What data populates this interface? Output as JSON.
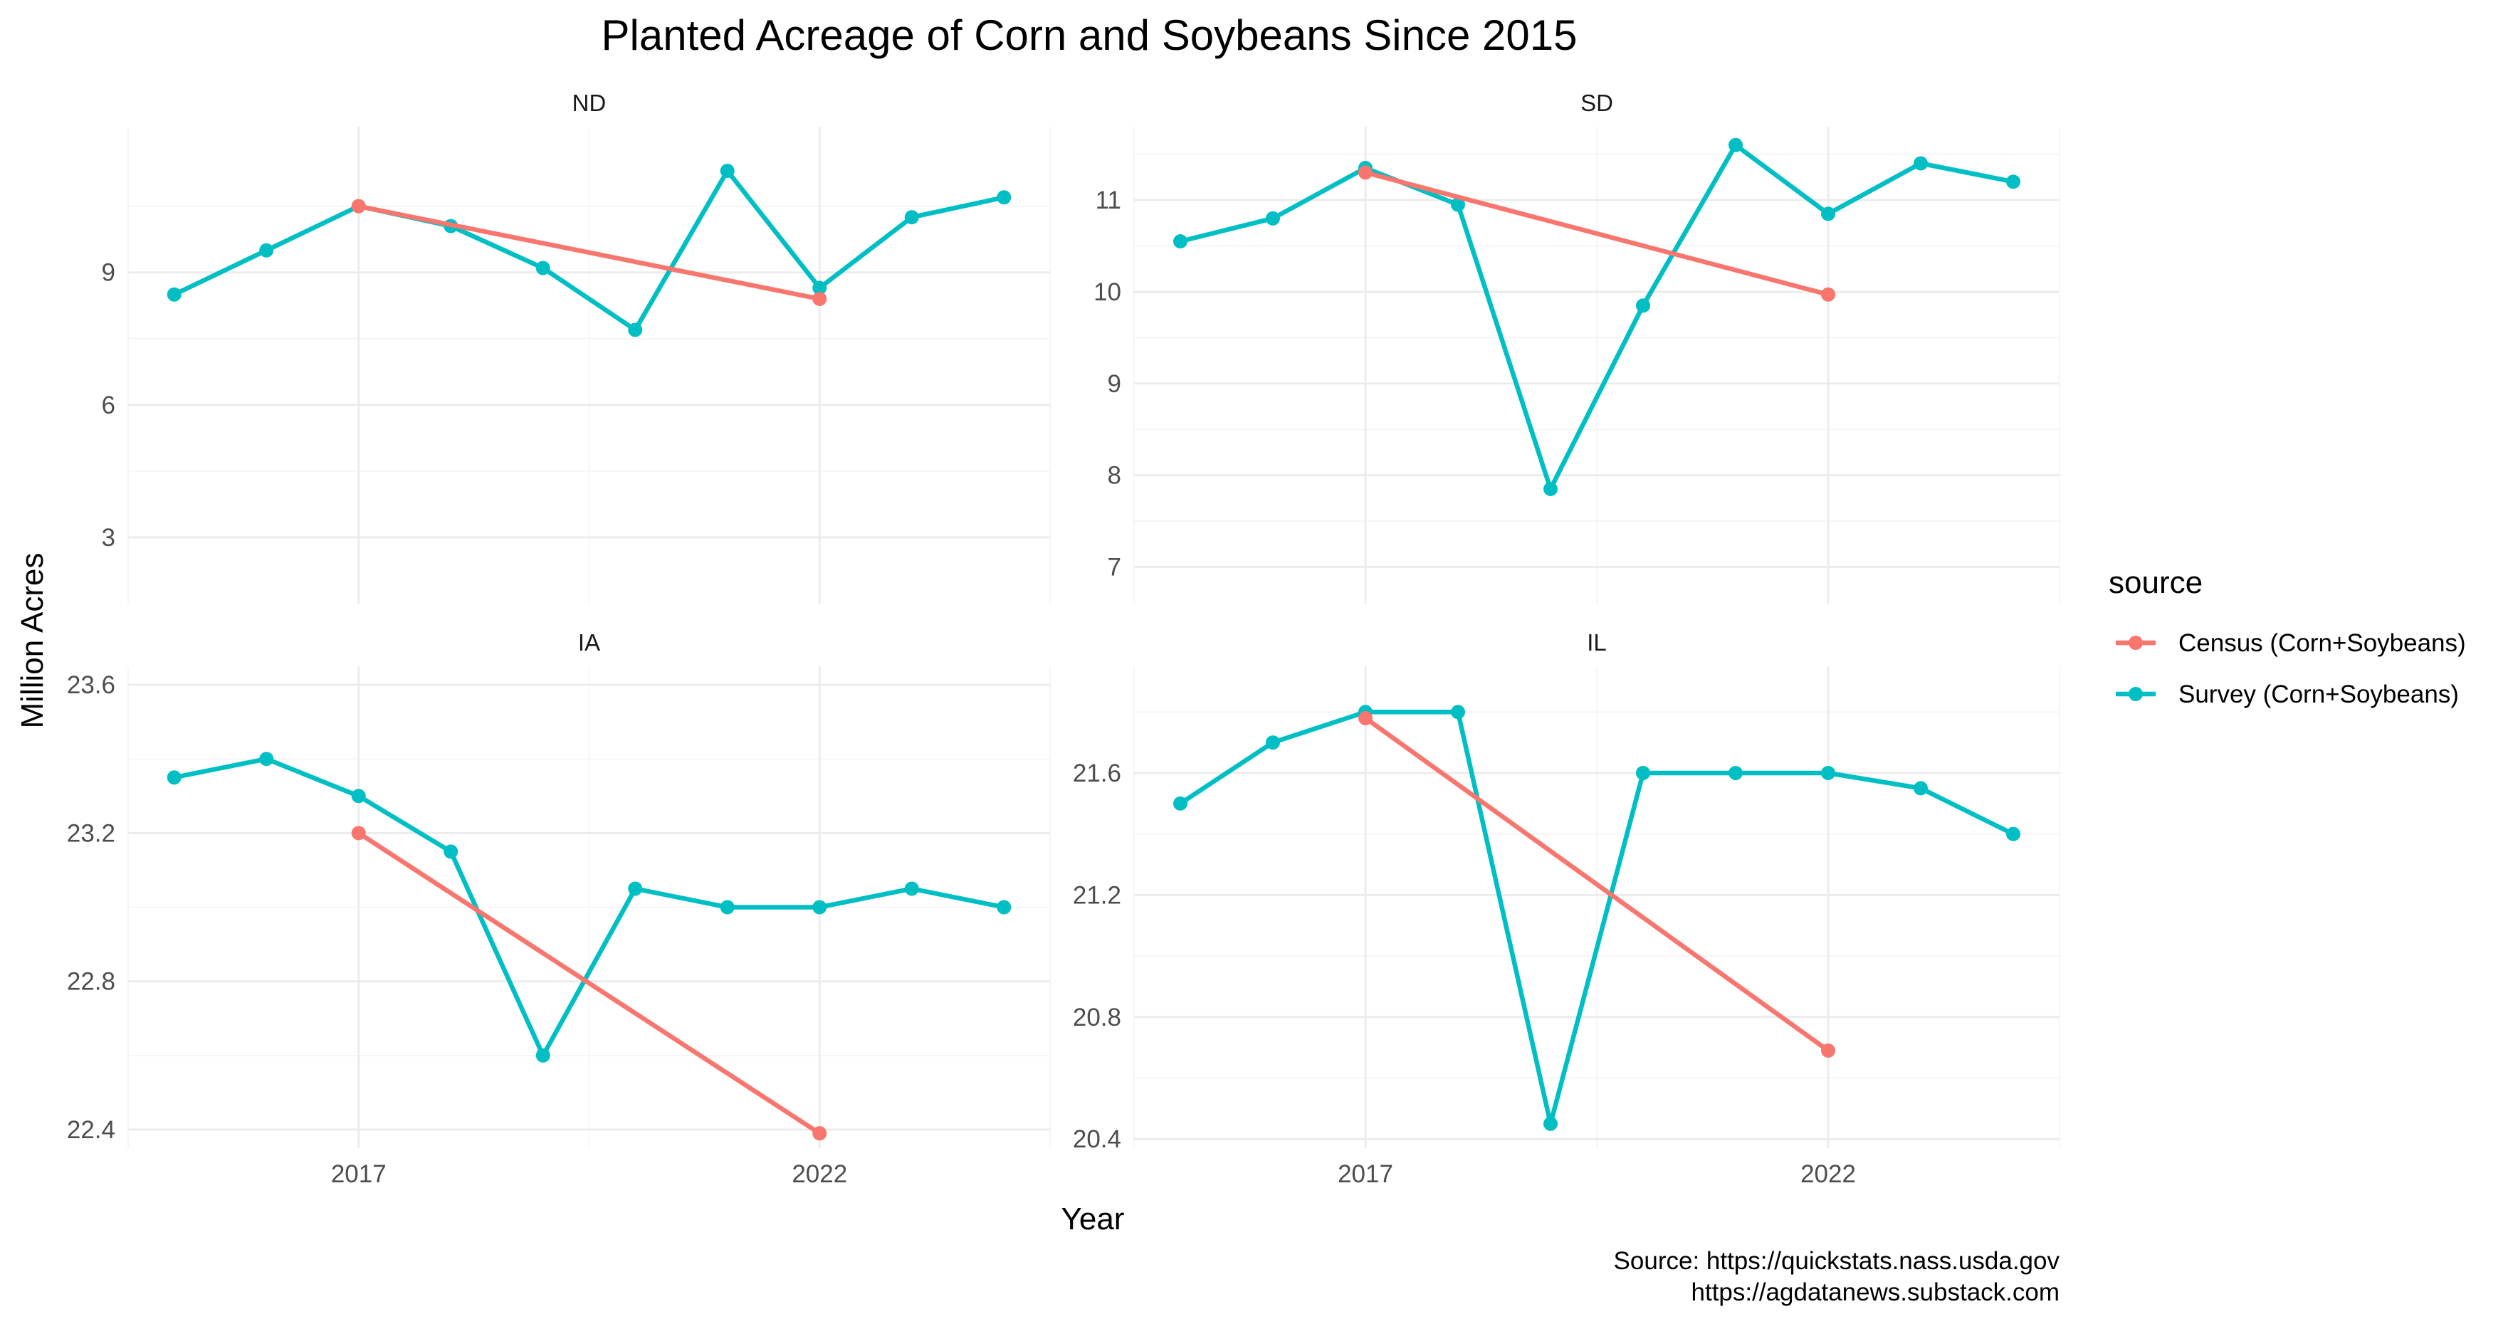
{
  "chart_data": {
    "type": "line",
    "title": "Planted Acreage of Corn and Soybeans Since 2015",
    "xlabel": "Year",
    "ylabel": "Million Acres",
    "x_ticks": [
      "2017",
      "2022"
    ],
    "legend": {
      "title": "source",
      "position": "right",
      "entries": [
        {
          "name": "Census (Corn+Soybeans)",
          "color": "#F8766D"
        },
        {
          "name": "Survey (Corn+Soybeans)",
          "color": "#00BFC4"
        }
      ]
    },
    "caption": [
      "Source: https://quickstats.nass.usda.gov",
      "https://agdatanews.substack.com"
    ],
    "panels": [
      {
        "name": "ND",
        "xlim": [
          2014.5,
          2024.5
        ],
        "ylim": [
          1.5,
          12.3
        ],
        "y_ticks": [
          3,
          6,
          9
        ],
        "y_tick_labels": [
          "3",
          "6",
          "9"
        ],
        "y_minor": [
          4.5,
          7.5,
          10.5
        ],
        "series": [
          {
            "name": "Survey (Corn+Soybeans)",
            "x": [
              2015,
              2016,
              2017,
              2018,
              2019,
              2020,
              2021,
              2022,
              2023,
              2024
            ],
            "y": [
              8.5,
              9.5,
              10.5,
              10.05,
              9.1,
              7.7,
              11.3,
              8.65,
              10.25,
              10.7
            ]
          },
          {
            "name": "Census (Corn+Soybeans)",
            "x": [
              2017,
              2022
            ],
            "y": [
              10.5,
              8.4
            ]
          }
        ]
      },
      {
        "name": "SD",
        "xlim": [
          2014.5,
          2024.5
        ],
        "ylim": [
          6.6,
          11.8
        ],
        "y_ticks": [
          7,
          8,
          9,
          10,
          11
        ],
        "y_tick_labels": [
          "7",
          "8",
          "9",
          "10",
          "11"
        ],
        "y_minor": [
          7.5,
          8.5,
          9.5,
          10.5,
          11.5
        ],
        "series": [
          {
            "name": "Survey (Corn+Soybeans)",
            "x": [
              2015,
              2016,
              2017,
              2018,
              2019,
              2020,
              2021,
              2022,
              2023,
              2024
            ],
            "y": [
              10.55,
              10.8,
              11.35,
              10.95,
              7.85,
              9.85,
              11.6,
              10.85,
              11.4,
              11.2
            ]
          },
          {
            "name": "Census (Corn+Soybeans)",
            "x": [
              2017,
              2022
            ],
            "y": [
              11.3,
              9.97
            ]
          }
        ]
      },
      {
        "name": "IA",
        "xlim": [
          2014.5,
          2024.5
        ],
        "ylim": [
          22.35,
          23.65
        ],
        "y_ticks": [
          22.4,
          22.8,
          23.2,
          23.6
        ],
        "y_tick_labels": [
          "22.4",
          "22.8",
          "23.2",
          "23.6"
        ],
        "y_minor": [
          22.6,
          23.0,
          23.4
        ],
        "series": [
          {
            "name": "Survey (Corn+Soybeans)",
            "x": [
              2015,
              2016,
              2017,
              2018,
              2019,
              2020,
              2021,
              2022,
              2023,
              2024
            ],
            "y": [
              23.35,
              23.4,
              23.3,
              23.15,
              22.6,
              23.05,
              23.0,
              23.0,
              23.05,
              23.0
            ]
          },
          {
            "name": "Census (Corn+Soybeans)",
            "x": [
              2017,
              2022
            ],
            "y": [
              23.2,
              22.39
            ]
          }
        ]
      },
      {
        "name": "IL",
        "xlim": [
          2014.5,
          2024.5
        ],
        "ylim": [
          20.37,
          21.95
        ],
        "y_ticks": [
          20.4,
          20.8,
          21.2,
          21.6
        ],
        "y_tick_labels": [
          "20.4",
          "20.8",
          "21.2",
          "21.6"
        ],
        "y_minor": [
          20.6,
          21.0,
          21.4,
          21.8
        ],
        "series": [
          {
            "name": "Survey (Corn+Soybeans)",
            "x": [
              2015,
              2016,
              2017,
              2018,
              2019,
              2020,
              2021,
              2022,
              2023,
              2024
            ],
            "y": [
              21.5,
              21.7,
              21.8,
              21.8,
              20.45,
              21.6,
              21.6,
              21.6,
              21.55,
              21.4
            ]
          },
          {
            "name": "Census (Corn+Soybeans)",
            "x": [
              2017,
              2022
            ],
            "y": [
              21.78,
              20.69
            ]
          }
        ]
      }
    ]
  }
}
